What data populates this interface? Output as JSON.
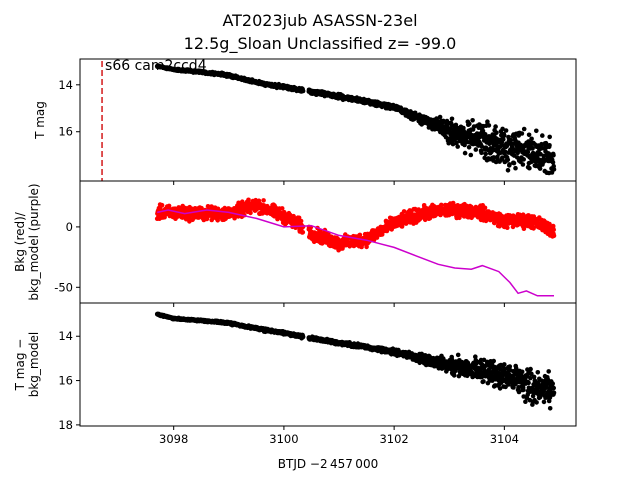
{
  "title_line1": "AT2023jub  ASASSN-23el",
  "title_line2": "12.5g_Sloan Unclassified z= -99.0",
  "annotation": "s66 cam2ccd4",
  "xlabel": "BTJD −2 457 000",
  "chart_data": [
    {
      "type": "scatter",
      "panel": "top",
      "ylabel": "T mag",
      "y_inverted": true,
      "xlim": [
        3096.3,
        3105.3
      ],
      "ylim": [
        12.9,
        18.1
      ],
      "x_ticks": [
        3098,
        3100,
        3102,
        3104
      ],
      "y_ticks": [
        14,
        16
      ],
      "marker_line_x": 3096.7,
      "marker_line_color": "#d62728",
      "series": [
        {
          "color": "#000000",
          "points": [
            [
              3097.7,
              13.2
            ],
            [
              3098.0,
              13.35
            ],
            [
              3098.5,
              13.45
            ],
            [
              3099.0,
              13.6
            ],
            [
              3099.5,
              13.9
            ],
            [
              3100.0,
              14.1
            ],
            [
              3100.5,
              14.3
            ],
            [
              3101.0,
              14.5
            ],
            [
              3101.5,
              14.7
            ],
            [
              3102.0,
              14.95
            ],
            [
              3102.5,
              15.5
            ],
            [
              3102.8,
              15.7
            ],
            [
              3103.0,
              16.0
            ],
            [
              3103.5,
              16.3
            ],
            [
              3104.0,
              16.7
            ],
            [
              3104.5,
              16.9
            ],
            [
              3104.9,
              17.1
            ]
          ],
          "scatter_half_width": [
            [
              3097.7,
              0.05
            ],
            [
              3102.0,
              0.15
            ],
            [
              3102.8,
              0.4
            ],
            [
              3103.0,
              0.7
            ],
            [
              3103.5,
              1.0
            ],
            [
              3104.0,
              1.1
            ],
            [
              3104.9,
              1.2
            ]
          ]
        }
      ]
    },
    {
      "type": "scatter",
      "panel": "middle",
      "ylabel": "Bkg (red)/\nbkg_model (purple)",
      "xlim": [
        3096.3,
        3105.3
      ],
      "ylim": [
        -63,
        38
      ],
      "y_ticks": [
        -50,
        0
      ],
      "series": [
        {
          "name": "Bkg",
          "color": "#ff0000",
          "points": [
            [
              3097.7,
              12
            ],
            [
              3098.5,
              11
            ],
            [
              3099.0,
              11
            ],
            [
              3099.5,
              18
            ],
            [
              3100.0,
              9
            ],
            [
              3100.5,
              -5
            ],
            [
              3101.0,
              -14
            ],
            [
              3101.5,
              -10
            ],
            [
              3102.0,
              3
            ],
            [
              3102.5,
              11
            ],
            [
              3103.0,
              14
            ],
            [
              3103.5,
              13
            ],
            [
              3104.0,
              5
            ],
            [
              3104.5,
              5
            ],
            [
              3104.9,
              -3
            ]
          ],
          "scatter_half_width": 8
        },
        {
          "name": "bkg_model",
          "color": "#cc00cc",
          "points": [
            [
              3097.7,
              12
            ],
            [
              3097.9,
              14
            ],
            [
              3098.2,
              11
            ],
            [
              3098.6,
              14
            ],
            [
              3099.0,
              12
            ],
            [
              3099.5,
              7
            ],
            [
              3100.0,
              0
            ],
            [
              3100.5,
              1
            ],
            [
              3101.0,
              -7
            ],
            [
              3101.5,
              -11
            ],
            [
              3102.0,
              -17
            ],
            [
              3102.4,
              -24
            ],
            [
              3102.8,
              -31
            ],
            [
              3103.1,
              -34
            ],
            [
              3103.4,
              -35
            ],
            [
              3103.6,
              -32
            ],
            [
              3103.9,
              -37
            ],
            [
              3104.1,
              -46
            ],
            [
              3104.25,
              -55
            ],
            [
              3104.4,
              -53
            ],
            [
              3104.6,
              -57
            ],
            [
              3104.9,
              -57
            ]
          ]
        }
      ]
    },
    {
      "type": "scatter",
      "panel": "bottom",
      "ylabel": "T mag −\nbkg_model",
      "y_inverted": true,
      "xlim": [
        3096.3,
        3105.3
      ],
      "ylim": [
        12.5,
        18.05
      ],
      "y_ticks": [
        14,
        16,
        18
      ],
      "series": [
        {
          "color": "#000000",
          "points": [
            [
              3097.7,
              13.0
            ],
            [
              3098.0,
              13.2
            ],
            [
              3098.5,
              13.3
            ],
            [
              3099.0,
              13.4
            ],
            [
              3099.5,
              13.65
            ],
            [
              3100.0,
              13.85
            ],
            [
              3100.5,
              14.1
            ],
            [
              3101.0,
              14.3
            ],
            [
              3101.5,
              14.5
            ],
            [
              3102.0,
              14.7
            ],
            [
              3102.5,
              15.0
            ],
            [
              3103.0,
              15.3
            ],
            [
              3103.5,
              15.5
            ],
            [
              3104.0,
              15.8
            ],
            [
              3104.5,
              16.2
            ],
            [
              3104.9,
              16.5
            ]
          ],
          "scatter_half_width": [
            [
              3097.7,
              0.05
            ],
            [
              3102.0,
              0.15
            ],
            [
              3102.5,
              0.3
            ],
            [
              3103.0,
              0.5
            ],
            [
              3103.5,
              0.7
            ],
            [
              3104.0,
              0.9
            ],
            [
              3104.9,
              1.1
            ]
          ]
        }
      ]
    }
  ]
}
